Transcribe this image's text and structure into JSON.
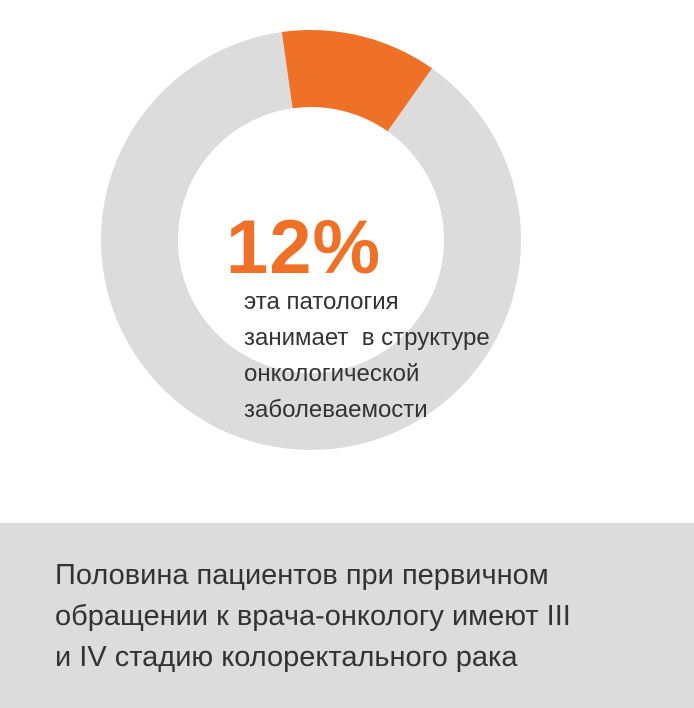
{
  "chart_data": {
    "type": "pie",
    "style": "donut",
    "slices": [
      {
        "value": 12,
        "color": "#ee7127"
      },
      {
        "value": 88,
        "color": "#dcdcdc"
      }
    ],
    "center_value": "12%",
    "center_label_lines": [
      "эта патология",
      "занимает  в структуре",
      "онкологической",
      "заболеваемости"
    ]
  },
  "footer": {
    "background": "#dcdcdc",
    "lines": [
      "Половина пациентов при первичном",
      "обращении к врача-онкологу имеют III",
      "и IV стадию колоректального рака"
    ]
  },
  "colors": {
    "accent": "#ee7127",
    "track": "#dcdcdc",
    "text": "#333333"
  }
}
